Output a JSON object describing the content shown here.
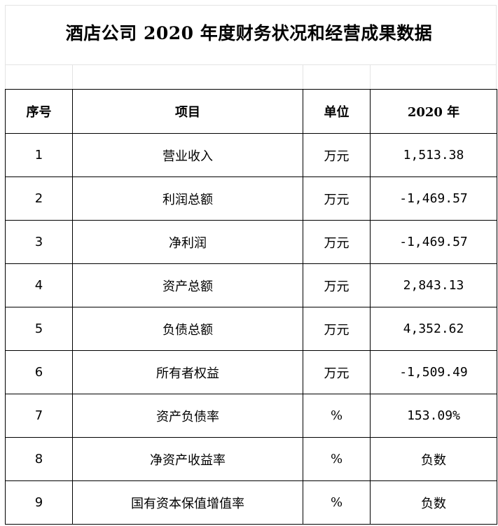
{
  "title": "酒店公司 2020 年度财务状况和经营成果数据",
  "table": {
    "headers": [
      "序号",
      "项目",
      "单位",
      "2020 年"
    ],
    "rows": [
      {
        "seq": "1",
        "item": "营业收入",
        "unit": "万元",
        "value": "1,513.38"
      },
      {
        "seq": "2",
        "item": "利润总额",
        "unit": "万元",
        "value": "-1,469.57"
      },
      {
        "seq": "3",
        "item": "净利润",
        "unit": "万元",
        "value": "-1,469.57"
      },
      {
        "seq": "4",
        "item": "资产总额",
        "unit": "万元",
        "value": "2,843.13"
      },
      {
        "seq": "5",
        "item": "负债总额",
        "unit": "万元",
        "value": "4,352.62"
      },
      {
        "seq": "6",
        "item": "所有者权益",
        "unit": "万元",
        "value": "-1,509.49"
      },
      {
        "seq": "7",
        "item": "资产负债率",
        "unit": "%",
        "value": "153.09%"
      },
      {
        "seq": "8",
        "item": "净资产收益率",
        "unit": "%",
        "value": "负数"
      },
      {
        "seq": "9",
        "item": "国有资本保值增值率",
        "unit": "%",
        "value": "负数"
      }
    ]
  }
}
